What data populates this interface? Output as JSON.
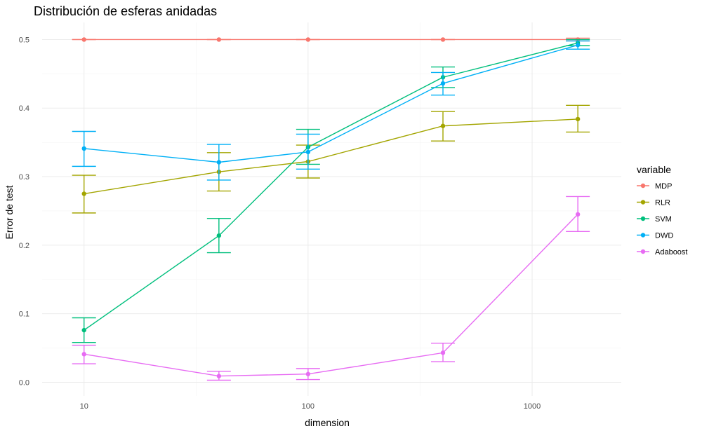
{
  "chart_data": {
    "type": "line",
    "title": "Distribución de esferas anidadas",
    "xlabel": "dimension",
    "ylabel": "Error de test",
    "x_scale": "log10",
    "x_ticks": [
      10,
      100,
      1000
    ],
    "x_tick_labels": [
      "10",
      "100",
      "1000"
    ],
    "xlim": [
      6.5,
      2500
    ],
    "y_ticks": [
      0.0,
      0.1,
      0.2,
      0.3,
      0.4,
      0.5
    ],
    "y_tick_labels": [
      "0.0",
      "0.1",
      "0.2",
      "0.3",
      "0.4",
      "0.5"
    ],
    "ylim": [
      -0.02,
      0.525
    ],
    "grid": true,
    "legend_title": "variable",
    "legend_position": "right",
    "x": [
      10,
      40,
      100,
      400,
      1600
    ],
    "series": [
      {
        "name": "MDP",
        "color": "#F8766D",
        "values": [
          0.5,
          0.5,
          0.5,
          0.5,
          0.5
        ],
        "lower": [
          0.5,
          0.5,
          0.5,
          0.5,
          0.498
        ],
        "upper": [
          0.5,
          0.5,
          0.5,
          0.5,
          0.502
        ]
      },
      {
        "name": "RLR",
        "color": "#A3A500",
        "values": [
          0.275,
          0.307,
          0.322,
          0.374,
          0.384
        ],
        "lower": [
          0.247,
          0.279,
          0.298,
          0.352,
          0.365
        ],
        "upper": [
          0.302,
          0.335,
          0.346,
          0.395,
          0.404
        ]
      },
      {
        "name": "SVM",
        "color": "#00BF7D",
        "values": [
          0.076,
          0.214,
          0.343,
          0.445,
          0.495
        ],
        "lower": [
          0.058,
          0.189,
          0.318,
          0.43,
          0.491
        ],
        "upper": [
          0.094,
          0.239,
          0.369,
          0.46,
          0.5
        ]
      },
      {
        "name": "DWD",
        "color": "#00B0F6",
        "values": [
          0.341,
          0.321,
          0.336,
          0.436,
          0.492
        ],
        "lower": [
          0.315,
          0.295,
          0.311,
          0.419,
          0.486
        ],
        "upper": [
          0.366,
          0.347,
          0.362,
          0.452,
          0.498
        ]
      },
      {
        "name": "Adaboost",
        "color": "#E76BF3",
        "values": [
          0.041,
          0.009,
          0.012,
          0.043,
          0.245
        ],
        "lower": [
          0.027,
          0.003,
          0.004,
          0.03,
          0.22
        ],
        "upper": [
          0.054,
          0.016,
          0.02,
          0.057,
          0.271
        ]
      }
    ]
  }
}
